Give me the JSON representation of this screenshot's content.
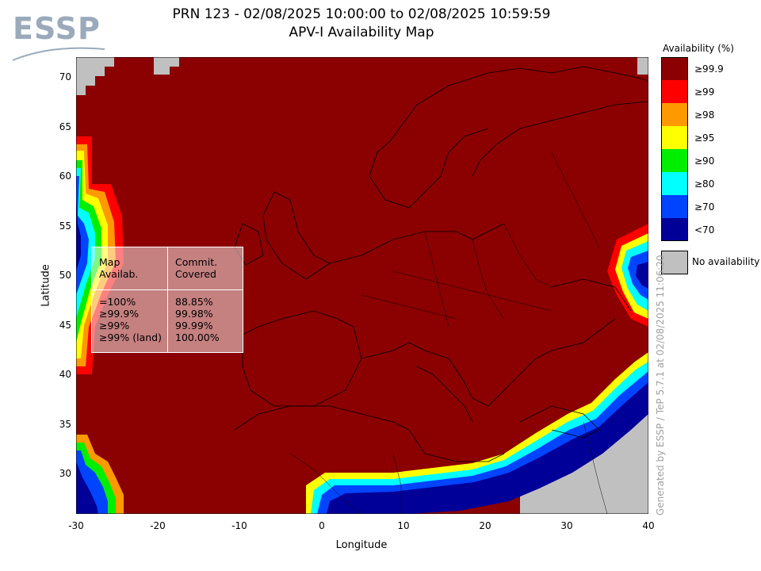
{
  "logo": {
    "text": "ESSP"
  },
  "title": {
    "line1": "PRN 123 - 02/08/2025 10:00:00 to 02/08/2025 10:59:59",
    "line2": "APV-I Availability Map"
  },
  "axes": {
    "xlabel": "Longitude",
    "ylabel": "Latitude",
    "xticks": [
      "-30",
      "-20",
      "-10",
      "0",
      "10",
      "20",
      "30",
      "40"
    ],
    "yticks": [
      "70",
      "65",
      "60",
      "55",
      "50",
      "45",
      "40",
      "35",
      "30"
    ],
    "xlim": [
      -30,
      40
    ],
    "ylim": [
      26,
      72
    ]
  },
  "legend": {
    "title": "Availability (%)",
    "items": [
      {
        "label": "≥99.9",
        "color": "#8b0000"
      },
      {
        "label": "≥99",
        "color": "#ff0000"
      },
      {
        "label": "≥98",
        "color": "#ff9900"
      },
      {
        "label": "≥95",
        "color": "#ffff00"
      },
      {
        "label": "≥90",
        "color": "#00ee00"
      },
      {
        "label": "≥80",
        "color": "#00ffff"
      },
      {
        "label": "≥70",
        "color": "#0044ff"
      },
      {
        "label": "<70",
        "color": "#000099"
      }
    ],
    "no_availability": {
      "label": "No availability",
      "color": "#c0c0c0"
    }
  },
  "stats": {
    "col1_header": "Map\nAvailab.",
    "col2_header": "Commit.\nCovered",
    "rows_col1": "=100%\n≥99.9%\n≥99%\n≥99% (land)",
    "rows_col2": "88.85%\n99.98%\n99.99%\n100.00%"
  },
  "credit": "Generated by ESSP / TeP 5.7.1 at 02/08/2025 11:06:20"
}
